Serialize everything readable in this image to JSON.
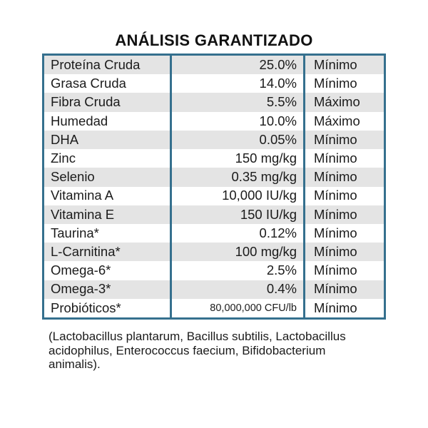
{
  "title": "ANÁLISIS GARANTIZADO",
  "table": {
    "rows": [
      {
        "name": "Proteína Cruda",
        "value": "25.0%",
        "limit": "Mínimo"
      },
      {
        "name": "Grasa Cruda",
        "value": "14.0%",
        "limit": "Mínimo"
      },
      {
        "name": "Fibra Cruda",
        "value": "5.5%",
        "limit": "Máximo"
      },
      {
        "name": "Humedad",
        "value": "10.0%",
        "limit": "Máximo"
      },
      {
        "name": "DHA",
        "value": "0.05%",
        "limit": "Mínimo"
      },
      {
        "name": "Zinc",
        "value": "150 mg/kg",
        "limit": "Mínimo"
      },
      {
        "name": "Selenio",
        "value": "0.35 mg/kg",
        "limit": "Mínimo"
      },
      {
        "name": "Vitamina A",
        "value": "10,000 IU/kg",
        "limit": "Mínimo"
      },
      {
        "name": "Vitamina E",
        "value": "150 IU/kg",
        "limit": "Mínimo"
      },
      {
        "name": "Taurina*",
        "value": "0.12%",
        "limit": "Mínimo"
      },
      {
        "name": "L-Carnitina*",
        "value": "100 mg/kg",
        "limit": "Mínimo"
      },
      {
        "name": "Omega-6*",
        "value": "2.5%",
        "limit": "Mínimo"
      },
      {
        "name": "Omega-3*",
        "value": "0.4%",
        "limit": "Mínimo"
      },
      {
        "name": "Probióticos*",
        "value": "80,000,000 CFU/lb",
        "limit": "Mínimo"
      }
    ]
  },
  "footnote": {
    "lines": [
      "(Lactobacillus plantarum, Bacillus subtilis, Lactobacillus",
      "acidophilus, Enterococcus faecium, Bifidobacterium",
      "animalis)."
    ]
  },
  "colors": {
    "table_border": "#35708e",
    "row_alt_background": "#e4e4e4",
    "text": "#1b1b1b"
  }
}
